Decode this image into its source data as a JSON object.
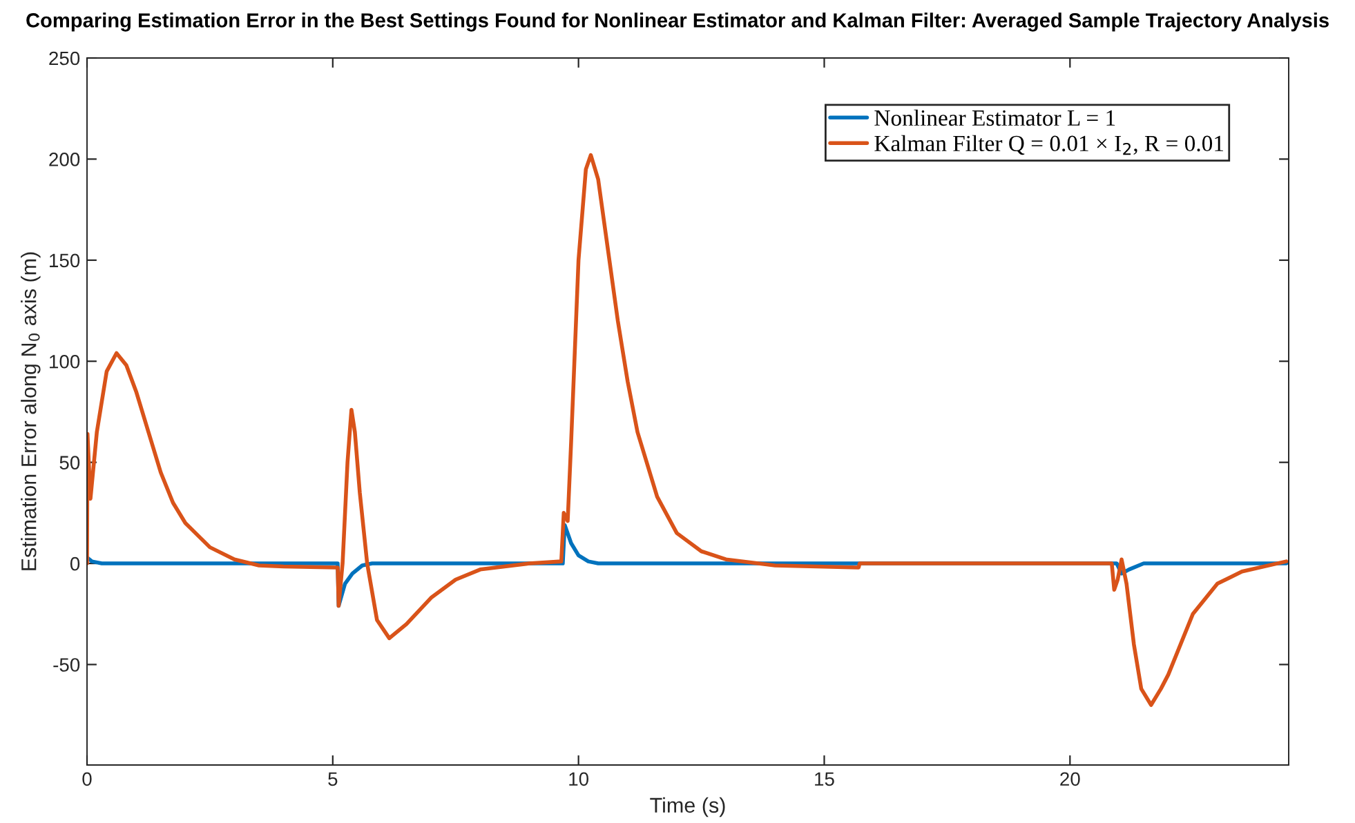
{
  "chart_data": {
    "type": "line",
    "title": "Comparing Estimation Error in the Best Settings Found for Nonlinear Estimator and Kalman Filter: Averaged Sample Trajectory Analysis",
    "xlabel": "Time (s)",
    "ylabel": "Estimation Error along N$_{0}$ axis (m)",
    "xlim": [
      0,
      24.45
    ],
    "xticks": [
      0,
      5,
      10,
      15,
      20
    ],
    "ylim": [
      -99.7,
      250
    ],
    "yticks": [
      -50,
      0,
      50,
      100,
      150,
      200,
      250
    ],
    "grid": false,
    "legend": "top right",
    "marker": "none",
    "line_style": "solid",
    "series": [
      {
        "name": "Nonlinear Estimator L = 1",
        "color": "#0072bd",
        "x": [
          0,
          0.1,
          0.3,
          5.1,
          5.12,
          5.25,
          5.4,
          5.6,
          5.8,
          9.68,
          9.72,
          9.85,
          10.0,
          10.2,
          10.4,
          15.7,
          20.95,
          21.05,
          21.2,
          21.5,
          24.4
        ],
        "values": [
          3,
          1,
          0,
          0,
          -21,
          -10,
          -5,
          -1,
          0,
          0,
          19,
          10,
          4,
          1,
          0,
          0,
          0,
          -5,
          -3,
          0,
          0
        ]
      },
      {
        "name": "Kalman Filter Q = 0.01 × I$_{2}$, R = 0.01",
        "color": "#d95319",
        "x": [
          0,
          0.01,
          0.07,
          0.2,
          0.4,
          0.6,
          0.8,
          1.0,
          1.25,
          1.5,
          1.75,
          2.0,
          2.5,
          3.0,
          3.5,
          4.0,
          5.1,
          5.12,
          5.2,
          5.3,
          5.38,
          5.45,
          5.55,
          5.7,
          5.9,
          6.15,
          6.5,
          7.0,
          7.5,
          8.0,
          9.0,
          9.65,
          9.7,
          9.78,
          9.85,
          10.0,
          10.15,
          10.25,
          10.4,
          10.6,
          10.8,
          11.0,
          11.2,
          11.6,
          12.0,
          12.5,
          13.0,
          14.0,
          15.7,
          15.72,
          20.85,
          20.9,
          20.97,
          21.05,
          21.15,
          21.3,
          21.45,
          21.65,
          21.85,
          22.0,
          22.5,
          23.0,
          23.5,
          24.4
        ],
        "values": [
          0,
          64,
          32,
          65,
          95,
          104,
          98,
          85,
          65,
          45,
          30,
          20,
          8,
          2,
          -1,
          -1.5,
          -2,
          -21,
          0,
          50,
          76,
          65,
          35,
          0,
          -28,
          -37,
          -30,
          -17,
          -8,
          -3,
          0,
          1,
          25,
          21,
          60,
          150,
          195,
          202,
          190,
          155,
          120,
          90,
          65,
          33,
          15,
          6,
          2,
          -1,
          -2,
          0,
          0,
          -13,
          -8,
          2,
          -10,
          -40,
          -62,
          -70,
          -62,
          -55,
          -25,
          -10,
          -4,
          1
        ]
      }
    ]
  }
}
